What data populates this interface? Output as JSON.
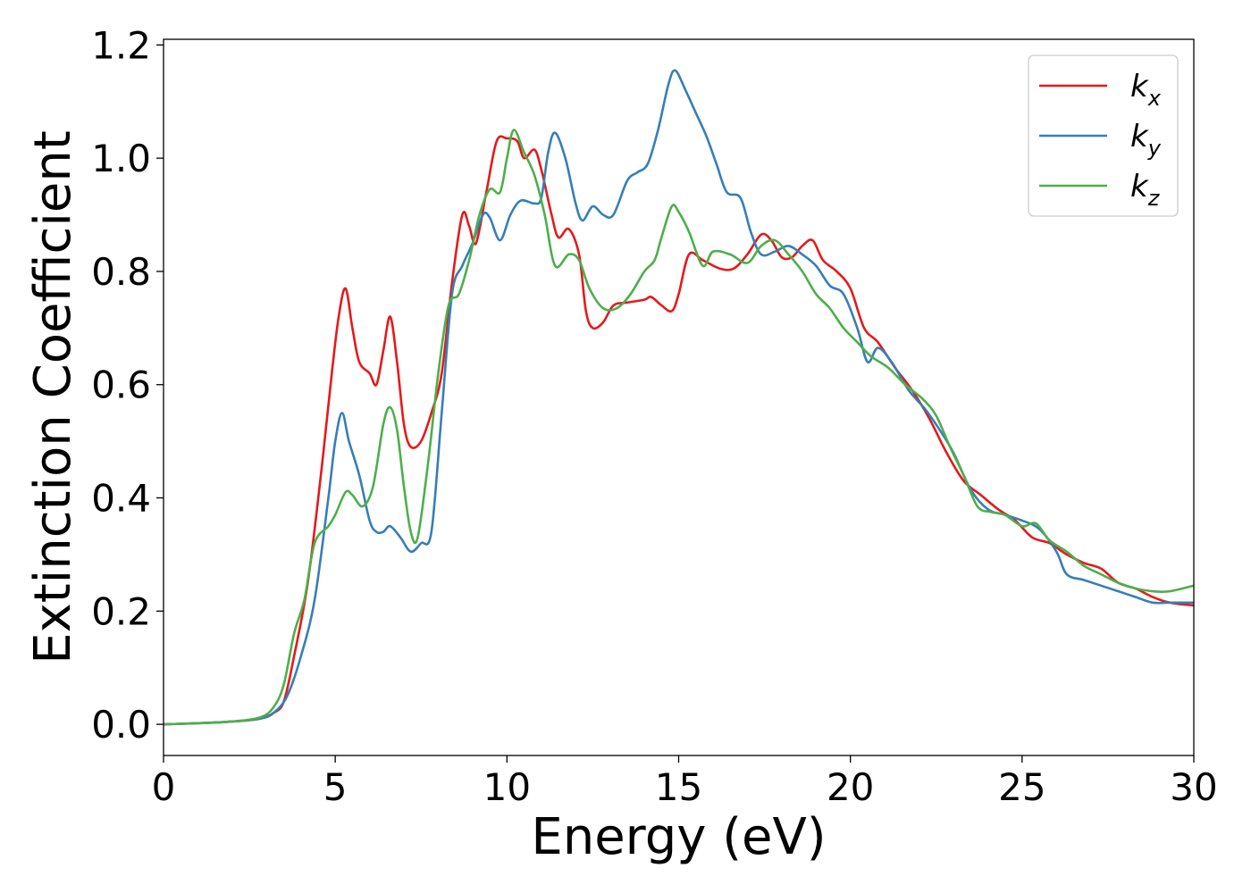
{
  "chart_data": {
    "type": "line",
    "title": "",
    "xlabel": "Energy (eV)",
    "ylabel": "Extinction Coefficient",
    "xlim": [
      0,
      30
    ],
    "ylim": [
      -0.055,
      1.21
    ],
    "xticks": [
      0,
      5,
      10,
      15,
      20,
      25,
      30
    ],
    "xtick_labels": [
      "0",
      "5",
      "10",
      "15",
      "20",
      "25",
      "30"
    ],
    "yticks": [
      0.0,
      0.2,
      0.4,
      0.6,
      0.8,
      1.0,
      1.2
    ],
    "ytick_labels": [
      "0.0",
      "0.2",
      "0.4",
      "0.6",
      "0.8",
      "1.0",
      "1.2"
    ],
    "grid": false,
    "legend_position": "top-right",
    "series": [
      {
        "legend_base": "k",
        "legend_sub": "x",
        "color": "#e41a1c",
        "points": [
          [
            0,
            0.0
          ],
          [
            1,
            0.002
          ],
          [
            2,
            0.005
          ],
          [
            2.8,
            0.01
          ],
          [
            3.2,
            0.02
          ],
          [
            3.5,
            0.04
          ],
          [
            3.8,
            0.12
          ],
          [
            4.2,
            0.25
          ],
          [
            4.6,
            0.45
          ],
          [
            4.9,
            0.62
          ],
          [
            5.1,
            0.72
          ],
          [
            5.3,
            0.77
          ],
          [
            5.5,
            0.7
          ],
          [
            5.7,
            0.64
          ],
          [
            6.0,
            0.62
          ],
          [
            6.2,
            0.6
          ],
          [
            6.4,
            0.66
          ],
          [
            6.6,
            0.72
          ],
          [
            6.8,
            0.64
          ],
          [
            7.0,
            0.53
          ],
          [
            7.2,
            0.49
          ],
          [
            7.5,
            0.5
          ],
          [
            7.8,
            0.55
          ],
          [
            8.1,
            0.62
          ],
          [
            8.4,
            0.78
          ],
          [
            8.7,
            0.9
          ],
          [
            8.9,
            0.88
          ],
          [
            9.1,
            0.85
          ],
          [
            9.4,
            0.94
          ],
          [
            9.7,
            1.03
          ],
          [
            10.0,
            1.035
          ],
          [
            10.3,
            1.03
          ],
          [
            10.5,
            1.0
          ],
          [
            10.8,
            1.015
          ],
          [
            11.0,
            0.98
          ],
          [
            11.3,
            0.9
          ],
          [
            11.5,
            0.86
          ],
          [
            11.8,
            0.875
          ],
          [
            12.1,
            0.83
          ],
          [
            12.3,
            0.73
          ],
          [
            12.5,
            0.7
          ],
          [
            12.8,
            0.71
          ],
          [
            13.1,
            0.74
          ],
          [
            13.5,
            0.745
          ],
          [
            14.0,
            0.75
          ],
          [
            14.2,
            0.755
          ],
          [
            14.5,
            0.74
          ],
          [
            14.8,
            0.73
          ],
          [
            15.0,
            0.76
          ],
          [
            15.3,
            0.83
          ],
          [
            15.7,
            0.82
          ],
          [
            16.2,
            0.805
          ],
          [
            16.6,
            0.805
          ],
          [
            17.0,
            0.83
          ],
          [
            17.4,
            0.865
          ],
          [
            17.7,
            0.855
          ],
          [
            18.0,
            0.825
          ],
          [
            18.3,
            0.825
          ],
          [
            18.6,
            0.845
          ],
          [
            18.9,
            0.855
          ],
          [
            19.2,
            0.82
          ],
          [
            19.6,
            0.8
          ],
          [
            20.0,
            0.77
          ],
          [
            20.4,
            0.7
          ],
          [
            20.8,
            0.675
          ],
          [
            21.3,
            0.63
          ],
          [
            21.8,
            0.59
          ],
          [
            22.3,
            0.54
          ],
          [
            22.8,
            0.48
          ],
          [
            23.3,
            0.43
          ],
          [
            23.8,
            0.405
          ],
          [
            24.3,
            0.38
          ],
          [
            24.8,
            0.36
          ],
          [
            25.3,
            0.33
          ],
          [
            25.8,
            0.32
          ],
          [
            26.3,
            0.3
          ],
          [
            26.8,
            0.285
          ],
          [
            27.3,
            0.275
          ],
          [
            27.8,
            0.25
          ],
          [
            28.3,
            0.24
          ],
          [
            28.8,
            0.225
          ],
          [
            29.3,
            0.215
          ],
          [
            30.0,
            0.21
          ]
        ]
      },
      {
        "legend_base": "k",
        "legend_sub": "y",
        "color": "#377eb8",
        "points": [
          [
            0,
            0.0
          ],
          [
            1,
            0.002
          ],
          [
            2,
            0.005
          ],
          [
            2.8,
            0.01
          ],
          [
            3.2,
            0.02
          ],
          [
            3.6,
            0.05
          ],
          [
            4.0,
            0.12
          ],
          [
            4.4,
            0.22
          ],
          [
            4.8,
            0.4
          ],
          [
            5.0,
            0.5
          ],
          [
            5.2,
            0.55
          ],
          [
            5.4,
            0.5
          ],
          [
            5.7,
            0.44
          ],
          [
            6.0,
            0.36
          ],
          [
            6.2,
            0.34
          ],
          [
            6.4,
            0.34
          ],
          [
            6.6,
            0.35
          ],
          [
            6.9,
            0.33
          ],
          [
            7.2,
            0.305
          ],
          [
            7.5,
            0.32
          ],
          [
            7.8,
            0.34
          ],
          [
            8.1,
            0.55
          ],
          [
            8.4,
            0.76
          ],
          [
            8.7,
            0.81
          ],
          [
            9.0,
            0.85
          ],
          [
            9.3,
            0.9
          ],
          [
            9.5,
            0.895
          ],
          [
            9.8,
            0.855
          ],
          [
            10.1,
            0.9
          ],
          [
            10.4,
            0.925
          ],
          [
            10.8,
            0.92
          ],
          [
            11.0,
            0.93
          ],
          [
            11.2,
            1.01
          ],
          [
            11.4,
            1.045
          ],
          [
            11.7,
            1.0
          ],
          [
            12.0,
            0.92
          ],
          [
            12.2,
            0.89
          ],
          [
            12.5,
            0.915
          ],
          [
            12.8,
            0.9
          ],
          [
            13.1,
            0.9
          ],
          [
            13.5,
            0.96
          ],
          [
            13.8,
            0.975
          ],
          [
            14.1,
            0.99
          ],
          [
            14.4,
            1.05
          ],
          [
            14.7,
            1.13
          ],
          [
            14.9,
            1.155
          ],
          [
            15.2,
            1.12
          ],
          [
            15.5,
            1.08
          ],
          [
            15.8,
            1.04
          ],
          [
            16.1,
            0.99
          ],
          [
            16.4,
            0.94
          ],
          [
            16.8,
            0.93
          ],
          [
            17.1,
            0.87
          ],
          [
            17.4,
            0.83
          ],
          [
            17.8,
            0.835
          ],
          [
            18.2,
            0.845
          ],
          [
            18.6,
            0.83
          ],
          [
            19.0,
            0.81
          ],
          [
            19.4,
            0.775
          ],
          [
            19.8,
            0.76
          ],
          [
            20.2,
            0.7
          ],
          [
            20.5,
            0.64
          ],
          [
            20.8,
            0.665
          ],
          [
            21.2,
            0.64
          ],
          [
            21.7,
            0.59
          ],
          [
            22.2,
            0.555
          ],
          [
            22.6,
            0.52
          ],
          [
            23.0,
            0.48
          ],
          [
            23.5,
            0.415
          ],
          [
            24.0,
            0.38
          ],
          [
            24.5,
            0.37
          ],
          [
            25.0,
            0.36
          ],
          [
            25.5,
            0.345
          ],
          [
            26.0,
            0.305
          ],
          [
            26.3,
            0.265
          ],
          [
            26.8,
            0.255
          ],
          [
            27.3,
            0.245
          ],
          [
            27.8,
            0.235
          ],
          [
            28.3,
            0.225
          ],
          [
            28.8,
            0.215
          ],
          [
            29.3,
            0.215
          ],
          [
            30.0,
            0.215
          ]
        ]
      },
      {
        "legend_base": "k",
        "legend_sub": "z",
        "color": "#4daf4a",
        "points": [
          [
            0,
            0.0
          ],
          [
            1,
            0.002
          ],
          [
            2,
            0.005
          ],
          [
            2.8,
            0.012
          ],
          [
            3.2,
            0.03
          ],
          [
            3.5,
            0.07
          ],
          [
            3.8,
            0.16
          ],
          [
            4.1,
            0.22
          ],
          [
            4.4,
            0.32
          ],
          [
            4.8,
            0.35
          ],
          [
            5.0,
            0.37
          ],
          [
            5.3,
            0.41
          ],
          [
            5.5,
            0.405
          ],
          [
            5.8,
            0.385
          ],
          [
            6.1,
            0.42
          ],
          [
            6.4,
            0.53
          ],
          [
            6.6,
            0.56
          ],
          [
            6.8,
            0.52
          ],
          [
            7.0,
            0.42
          ],
          [
            7.2,
            0.34
          ],
          [
            7.4,
            0.33
          ],
          [
            7.7,
            0.46
          ],
          [
            8.0,
            0.62
          ],
          [
            8.3,
            0.74
          ],
          [
            8.6,
            0.76
          ],
          [
            8.9,
            0.82
          ],
          [
            9.2,
            0.9
          ],
          [
            9.5,
            0.945
          ],
          [
            9.8,
            0.94
          ],
          [
            10.0,
            1.0
          ],
          [
            10.2,
            1.05
          ],
          [
            10.5,
            1.01
          ],
          [
            10.8,
            0.97
          ],
          [
            11.1,
            0.9
          ],
          [
            11.4,
            0.81
          ],
          [
            11.8,
            0.83
          ],
          [
            12.1,
            0.82
          ],
          [
            12.4,
            0.77
          ],
          [
            12.8,
            0.735
          ],
          [
            13.2,
            0.735
          ],
          [
            13.6,
            0.76
          ],
          [
            14.0,
            0.8
          ],
          [
            14.3,
            0.82
          ],
          [
            14.5,
            0.86
          ],
          [
            14.8,
            0.915
          ],
          [
            15.0,
            0.905
          ],
          [
            15.3,
            0.87
          ],
          [
            15.7,
            0.81
          ],
          [
            16.0,
            0.835
          ],
          [
            16.5,
            0.83
          ],
          [
            17.0,
            0.815
          ],
          [
            17.4,
            0.845
          ],
          [
            17.8,
            0.855
          ],
          [
            18.2,
            0.83
          ],
          [
            18.6,
            0.8
          ],
          [
            19.0,
            0.76
          ],
          [
            19.4,
            0.735
          ],
          [
            19.8,
            0.7
          ],
          [
            20.2,
            0.675
          ],
          [
            20.6,
            0.65
          ],
          [
            21.1,
            0.63
          ],
          [
            21.6,
            0.6
          ],
          [
            22.1,
            0.575
          ],
          [
            22.5,
            0.545
          ],
          [
            22.9,
            0.49
          ],
          [
            23.3,
            0.44
          ],
          [
            23.7,
            0.385
          ],
          [
            24.1,
            0.375
          ],
          [
            24.5,
            0.37
          ],
          [
            25.0,
            0.35
          ],
          [
            25.4,
            0.355
          ],
          [
            25.8,
            0.325
          ],
          [
            26.3,
            0.305
          ],
          [
            26.8,
            0.28
          ],
          [
            27.3,
            0.265
          ],
          [
            27.8,
            0.25
          ],
          [
            28.3,
            0.24
          ],
          [
            28.8,
            0.235
          ],
          [
            29.3,
            0.235
          ],
          [
            30.0,
            0.245
          ]
        ]
      }
    ]
  }
}
